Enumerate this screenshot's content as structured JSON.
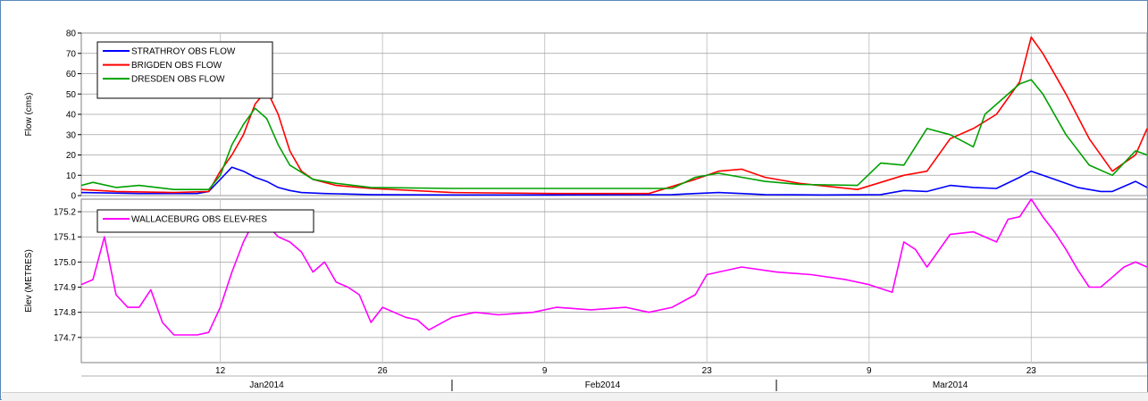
{
  "chart_data": [
    {
      "type": "line",
      "ylabel": "Flow (cms)",
      "ylim": [
        0,
        80
      ],
      "yticks": [
        0,
        10,
        20,
        30,
        40,
        50,
        60,
        70,
        80
      ],
      "legend_position": "top-left",
      "x_unit": "day",
      "series": [
        {
          "name": "STRATHROY OBS FLOW",
          "color": "#0000ff",
          "x": [
            "2013-12-31",
            "2014-01-05",
            "2014-01-10",
            "2014-01-11",
            "2014-01-12",
            "2014-01-13",
            "2014-01-14",
            "2014-01-15",
            "2014-01-16",
            "2014-01-17",
            "2014-01-18",
            "2014-01-19",
            "2014-01-21",
            "2014-01-25",
            "2014-02-01",
            "2014-02-10",
            "2014-02-20",
            "2014-02-22",
            "2014-02-24",
            "2014-02-26",
            "2014-02-28",
            "2014-03-05",
            "2014-03-10",
            "2014-03-12",
            "2014-03-14",
            "2014-03-16",
            "2014-03-18",
            "2014-03-20",
            "2014-03-22",
            "2014-03-23",
            "2014-03-25",
            "2014-03-27",
            "2014-03-29",
            "2014-03-30",
            "2014-04-01",
            "2014-04-02"
          ],
          "y": [
            1.5,
            1,
            1,
            2,
            8,
            14,
            12,
            9,
            7,
            4,
            2.5,
            1.5,
            1,
            0.5,
            0.3,
            0.3,
            0.5,
            1,
            1.5,
            1,
            0.5,
            0.3,
            0.5,
            2.5,
            2,
            5,
            4,
            3.5,
            9,
            12,
            8,
            4,
            2,
            2,
            7,
            4
          ]
        },
        {
          "name": "BRIGDEN OBS FLOW",
          "color": "#ff0000",
          "x": [
            "2013-12-31",
            "2014-01-03",
            "2014-01-08",
            "2014-01-11",
            "2014-01-12",
            "2014-01-13",
            "2014-01-14",
            "2014-01-15",
            "2014-01-16",
            "2014-01-17",
            "2014-01-18",
            "2014-01-19",
            "2014-01-20",
            "2014-01-22",
            "2014-01-25",
            "2014-02-01",
            "2014-02-10",
            "2014-02-18",
            "2014-02-22",
            "2014-02-24",
            "2014-02-26",
            "2014-02-28",
            "2014-03-03",
            "2014-03-08",
            "2014-03-12",
            "2014-03-14",
            "2014-03-16",
            "2014-03-18",
            "2014-03-20",
            "2014-03-22",
            "2014-03-23",
            "2014-03-24",
            "2014-03-26",
            "2014-03-28",
            "2014-03-30",
            "2014-04-01",
            "2014-04-02"
          ],
          "y": [
            3,
            2,
            1.5,
            2,
            12,
            20,
            30,
            45,
            52,
            40,
            22,
            12,
            8,
            5,
            3.5,
            1.5,
            1,
            1,
            8,
            12,
            13,
            9,
            6,
            3,
            10,
            12,
            28,
            33,
            40,
            56,
            78,
            70,
            50,
            28,
            12,
            20,
            33
          ]
        },
        {
          "name": "DRESDEN OBS FLOW",
          "color": "#00a000",
          "x": [
            "2013-12-31",
            "2014-01-01",
            "2014-01-03",
            "2014-01-05",
            "2014-01-08",
            "2014-01-11",
            "2014-01-12",
            "2014-01-13",
            "2014-01-14",
            "2014-01-15",
            "2014-01-16",
            "2014-01-17",
            "2014-01-18",
            "2014-01-20",
            "2014-01-22",
            "2014-01-25",
            "2014-02-01",
            "2014-02-10",
            "2014-02-20",
            "2014-02-22",
            "2014-02-24",
            "2014-02-26",
            "2014-02-28",
            "2014-03-03",
            "2014-03-08",
            "2014-03-10",
            "2014-03-12",
            "2014-03-14",
            "2014-03-16",
            "2014-03-18",
            "2014-03-19",
            "2014-03-22",
            "2014-03-23",
            "2014-03-24",
            "2014-03-26",
            "2014-03-28",
            "2014-03-30",
            "2014-04-01",
            "2014-04-02"
          ],
          "y": [
            5,
            6.5,
            4,
            5,
            3,
            3,
            10,
            25,
            35,
            43,
            38,
            25,
            15,
            8,
            6,
            4,
            3.5,
            3.5,
            3.5,
            9,
            11,
            9,
            7,
            5.5,
            5,
            16,
            15,
            33,
            30,
            24,
            40,
            55,
            57,
            50,
            30,
            15,
            10,
            22,
            20
          ]
        }
      ]
    },
    {
      "type": "line",
      "ylabel": "Elev (METRES)",
      "ylim": [
        174.6,
        175.25
      ],
      "yticks": [
        174.7,
        174.8,
        174.9,
        175.0,
        175.1,
        175.2
      ],
      "legend_position": "top-left",
      "x_unit": "day",
      "series": [
        {
          "name": "WALLACEBURG OBS ELEV-RES",
          "color": "#ff00ff",
          "x": [
            "2013-12-31",
            "2014-01-01",
            "2014-01-02",
            "2014-01-03",
            "2014-01-04",
            "2014-01-05",
            "2014-01-06",
            "2014-01-07",
            "2014-01-08",
            "2014-01-09",
            "2014-01-10",
            "2014-01-11",
            "2014-01-12",
            "2014-01-13",
            "2014-01-14",
            "2014-01-15",
            "2014-01-16",
            "2014-01-17",
            "2014-01-18",
            "2014-01-19",
            "2014-01-20",
            "2014-01-21",
            "2014-01-22",
            "2014-01-23",
            "2014-01-24",
            "2014-01-25",
            "2014-01-26",
            "2014-01-27",
            "2014-01-28",
            "2014-01-29",
            "2014-01-30",
            "2014-02-01",
            "2014-02-03",
            "2014-02-05",
            "2014-02-08",
            "2014-02-10",
            "2014-02-13",
            "2014-02-16",
            "2014-02-18",
            "2014-02-20",
            "2014-02-22",
            "2014-02-23",
            "2014-02-26",
            "2014-03-01",
            "2014-03-04",
            "2014-03-07",
            "2014-03-09",
            "2014-03-11",
            "2014-03-12",
            "2014-03-13",
            "2014-03-14",
            "2014-03-16",
            "2014-03-18",
            "2014-03-20",
            "2014-03-21",
            "2014-03-22",
            "2014-03-23",
            "2014-03-24",
            "2014-03-25",
            "2014-03-26",
            "2014-03-27",
            "2014-03-28",
            "2014-03-29",
            "2014-03-30",
            "2014-03-31",
            "2014-04-01",
            "2014-04-02"
          ],
          "y": [
            174.91,
            174.93,
            175.1,
            174.87,
            174.82,
            174.82,
            174.89,
            174.76,
            174.71,
            174.71,
            174.71,
            174.72,
            174.82,
            174.96,
            175.08,
            175.17,
            175.15,
            175.1,
            175.08,
            175.04,
            174.96,
            175.0,
            174.92,
            174.9,
            174.87,
            174.76,
            174.82,
            174.8,
            174.78,
            174.77,
            174.73,
            174.78,
            174.8,
            174.79,
            174.8,
            174.82,
            174.81,
            174.82,
            174.8,
            174.82,
            174.87,
            174.95,
            174.98,
            174.96,
            174.95,
            174.93,
            174.91,
            174.88,
            175.08,
            175.05,
            174.98,
            175.11,
            175.12,
            175.08,
            175.17,
            175.18,
            175.25,
            175.18,
            175.12,
            175.05,
            174.97,
            174.9,
            174.9,
            174.94,
            174.98,
            175.0,
            174.98
          ]
        }
      ]
    }
  ],
  "x_axis": {
    "day_ticks": [
      {
        "date": "2014-01-12",
        "label": "12"
      },
      {
        "date": "2014-01-26",
        "label": "26"
      },
      {
        "date": "2014-02-09",
        "label": "9"
      },
      {
        "date": "2014-02-23",
        "label": "23"
      },
      {
        "date": "2014-03-09",
        "label": "9"
      },
      {
        "date": "2014-03-23",
        "label": "23"
      }
    ],
    "months": [
      {
        "label": "Jan2014",
        "at": "2014-01-16"
      },
      {
        "label": "Feb2014",
        "at": "2014-02-14"
      },
      {
        "label": "Mar2014",
        "at": "2014-03-16"
      }
    ],
    "month_separators": [
      "2014-02-01",
      "2014-03-01"
    ]
  }
}
